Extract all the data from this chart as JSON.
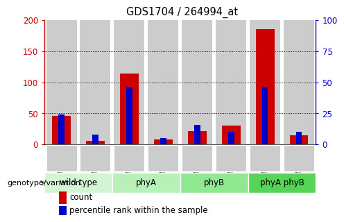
{
  "title": "GDS1704 / 264994_at",
  "samples": [
    "GSM65896",
    "GSM65897",
    "GSM65898",
    "GSM65902",
    "GSM65904",
    "GSM65910",
    "GSM66029",
    "GSM66030"
  ],
  "count_values": [
    46,
    6,
    114,
    8,
    21,
    30,
    185,
    15
  ],
  "percentile_values": [
    24,
    8,
    46,
    5,
    16,
    10,
    46,
    10
  ],
  "groups": [
    {
      "label": "wild type",
      "span": [
        0,
        2
      ],
      "color": "#ccffcc"
    },
    {
      "label": "phyA",
      "span": [
        2,
        4
      ],
      "color": "#aaffaa"
    },
    {
      "label": "phyB",
      "span": [
        4,
        6
      ],
      "color": "#88dd88"
    },
    {
      "label": "phyA phyB",
      "span": [
        6,
        8
      ],
      "color": "#44cc44"
    }
  ],
  "group_label": "genotype/variation",
  "count_color": "#cc0000",
  "percentile_color": "#0000cc",
  "sample_bg_color": "#cccccc",
  "ylim_left": [
    0,
    200
  ],
  "ylim_right": [
    0,
    100
  ],
  "yticks_left": [
    0,
    50,
    100,
    150,
    200
  ],
  "yticks_right": [
    0,
    25,
    50,
    75,
    100
  ],
  "count_bar_width": 0.55,
  "pct_bar_width": 0.18
}
